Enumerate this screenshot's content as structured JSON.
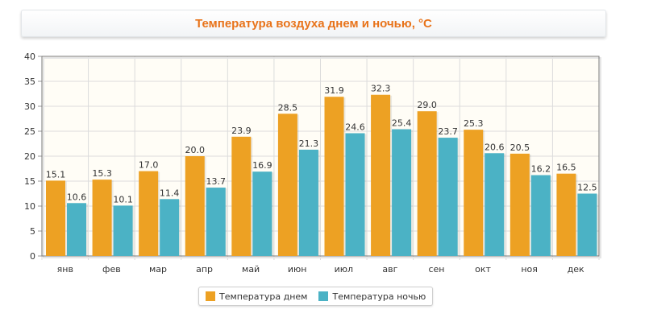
{
  "chart_data": {
    "type": "bar",
    "title": "Температура воздуха днем и ночью, °С",
    "categories": [
      "янв",
      "фев",
      "мар",
      "апр",
      "май",
      "июн",
      "июл",
      "авг",
      "сен",
      "окт",
      "ноя",
      "дек"
    ],
    "series": [
      {
        "name": "Температура днем",
        "color": "#eda123",
        "values": [
          15.1,
          15.3,
          17.0,
          20.0,
          23.9,
          28.5,
          31.9,
          32.3,
          29.0,
          25.3,
          20.5,
          16.5
        ],
        "labels": [
          "15.1",
          "15.3",
          "17.0",
          "20.0",
          "23.9",
          "28.5",
          "31.9",
          "32.3",
          "29.0",
          "25.3",
          "20.5",
          "16.5"
        ]
      },
      {
        "name": "Температура ночью",
        "color": "#4bb2c5",
        "values": [
          10.6,
          10.1,
          11.4,
          13.7,
          16.9,
          21.3,
          24.6,
          25.4,
          23.7,
          20.6,
          16.2,
          12.5
        ],
        "labels": [
          "10.6",
          "10.1",
          "11.4",
          "13.7",
          "16.9",
          "21.3",
          "24.6",
          "25.4",
          "23.7",
          "20.6",
          "16.2",
          "12.5"
        ]
      }
    ],
    "ylim": [
      0,
      40
    ],
    "yticks": [
      "0",
      "5",
      "10",
      "15",
      "20",
      "25",
      "30",
      "35",
      "40"
    ],
    "grid": true,
    "legend_position": "bottom"
  }
}
